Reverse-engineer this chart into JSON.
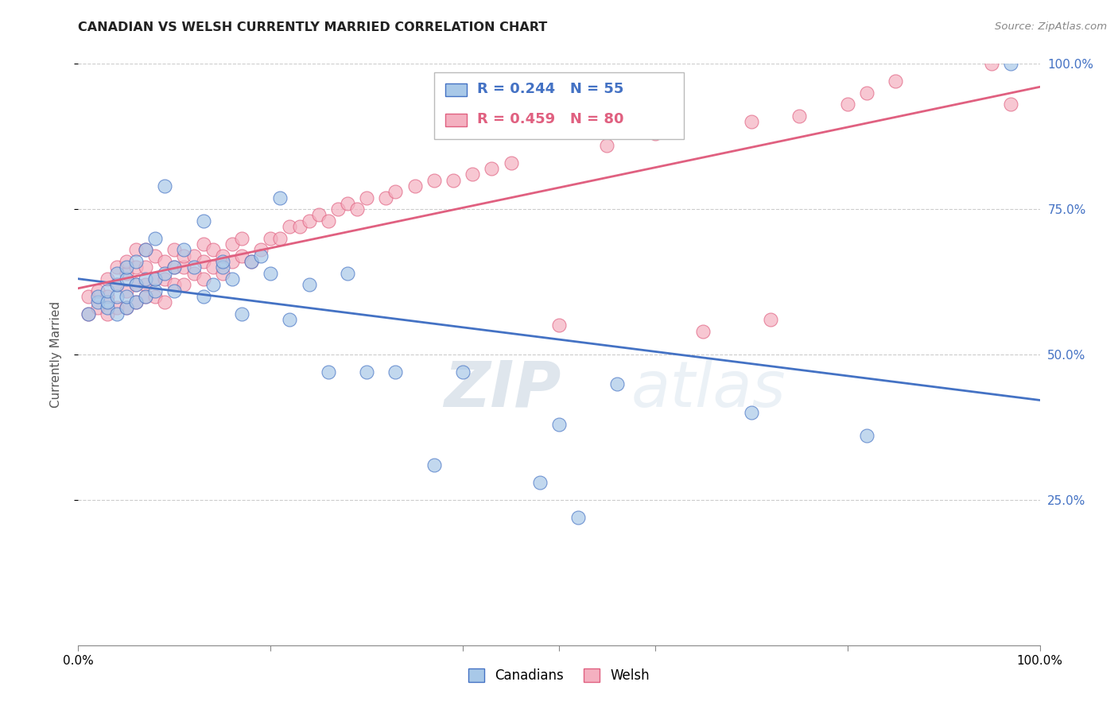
{
  "title": "CANADIAN VS WELSH CURRENTLY MARRIED CORRELATION CHART",
  "source": "Source: ZipAtlas.com",
  "ylabel": "Currently Married",
  "watermark_zip": "ZIP",
  "watermark_atlas": "atlas",
  "xlim": [
    0.0,
    1.0
  ],
  "ylim": [
    0.0,
    1.0
  ],
  "xtick_labels": [
    "0.0%",
    "100.0%"
  ],
  "ytick_labels": [
    "25.0%",
    "50.0%",
    "75.0%",
    "100.0%"
  ],
  "ytick_positions": [
    0.25,
    0.5,
    0.75,
    1.0
  ],
  "canadian_R": 0.244,
  "canadian_N": 55,
  "welsh_R": 0.459,
  "welsh_N": 80,
  "canadian_color": "#A8C8E8",
  "welsh_color": "#F4B0C0",
  "canadian_line_color": "#4472C4",
  "welsh_line_color": "#E06080",
  "background_color": "#FFFFFF",
  "grid_color": "#CCCCCC",
  "canadians_x": [
    0.01,
    0.02,
    0.02,
    0.03,
    0.03,
    0.03,
    0.04,
    0.04,
    0.04,
    0.04,
    0.05,
    0.05,
    0.05,
    0.05,
    0.06,
    0.06,
    0.06,
    0.07,
    0.07,
    0.07,
    0.08,
    0.08,
    0.08,
    0.09,
    0.09,
    0.1,
    0.1,
    0.11,
    0.12,
    0.13,
    0.13,
    0.14,
    0.15,
    0.15,
    0.16,
    0.17,
    0.18,
    0.19,
    0.2,
    0.21,
    0.22,
    0.24,
    0.26,
    0.28,
    0.3,
    0.33,
    0.37,
    0.4,
    0.48,
    0.5,
    0.52,
    0.56,
    0.7,
    0.82,
    0.97
  ],
  "canadians_y": [
    0.57,
    0.59,
    0.6,
    0.58,
    0.59,
    0.61,
    0.57,
    0.6,
    0.62,
    0.64,
    0.58,
    0.6,
    0.63,
    0.65,
    0.59,
    0.62,
    0.66,
    0.6,
    0.63,
    0.68,
    0.61,
    0.63,
    0.7,
    0.64,
    0.79,
    0.61,
    0.65,
    0.68,
    0.65,
    0.6,
    0.73,
    0.62,
    0.65,
    0.66,
    0.63,
    0.57,
    0.66,
    0.67,
    0.64,
    0.77,
    0.56,
    0.62,
    0.47,
    0.64,
    0.47,
    0.47,
    0.31,
    0.47,
    0.28,
    0.38,
    0.22,
    0.45,
    0.4,
    0.36,
    1.0
  ],
  "welsh_x": [
    0.01,
    0.01,
    0.02,
    0.02,
    0.03,
    0.03,
    0.03,
    0.04,
    0.04,
    0.04,
    0.05,
    0.05,
    0.05,
    0.05,
    0.06,
    0.06,
    0.06,
    0.06,
    0.07,
    0.07,
    0.07,
    0.07,
    0.08,
    0.08,
    0.08,
    0.09,
    0.09,
    0.09,
    0.1,
    0.1,
    0.1,
    0.11,
    0.11,
    0.11,
    0.12,
    0.12,
    0.13,
    0.13,
    0.13,
    0.14,
    0.14,
    0.15,
    0.15,
    0.16,
    0.16,
    0.17,
    0.17,
    0.18,
    0.19,
    0.2,
    0.21,
    0.22,
    0.23,
    0.24,
    0.25,
    0.26,
    0.27,
    0.28,
    0.29,
    0.3,
    0.32,
    0.33,
    0.35,
    0.37,
    0.39,
    0.41,
    0.43,
    0.45,
    0.5,
    0.55,
    0.6,
    0.65,
    0.7,
    0.72,
    0.75,
    0.8,
    0.82,
    0.85,
    0.95,
    0.97
  ],
  "welsh_y": [
    0.57,
    0.6,
    0.58,
    0.61,
    0.57,
    0.6,
    0.63,
    0.58,
    0.62,
    0.65,
    0.58,
    0.61,
    0.64,
    0.66,
    0.59,
    0.62,
    0.65,
    0.68,
    0.6,
    0.62,
    0.65,
    0.68,
    0.6,
    0.63,
    0.67,
    0.59,
    0.63,
    0.66,
    0.62,
    0.65,
    0.68,
    0.62,
    0.65,
    0.67,
    0.64,
    0.67,
    0.63,
    0.66,
    0.69,
    0.65,
    0.68,
    0.64,
    0.67,
    0.66,
    0.69,
    0.67,
    0.7,
    0.66,
    0.68,
    0.7,
    0.7,
    0.72,
    0.72,
    0.73,
    0.74,
    0.73,
    0.75,
    0.76,
    0.75,
    0.77,
    0.77,
    0.78,
    0.79,
    0.8,
    0.8,
    0.81,
    0.82,
    0.83,
    0.55,
    0.86,
    0.88,
    0.54,
    0.9,
    0.56,
    0.91,
    0.93,
    0.95,
    0.97,
    1.0,
    0.93
  ]
}
